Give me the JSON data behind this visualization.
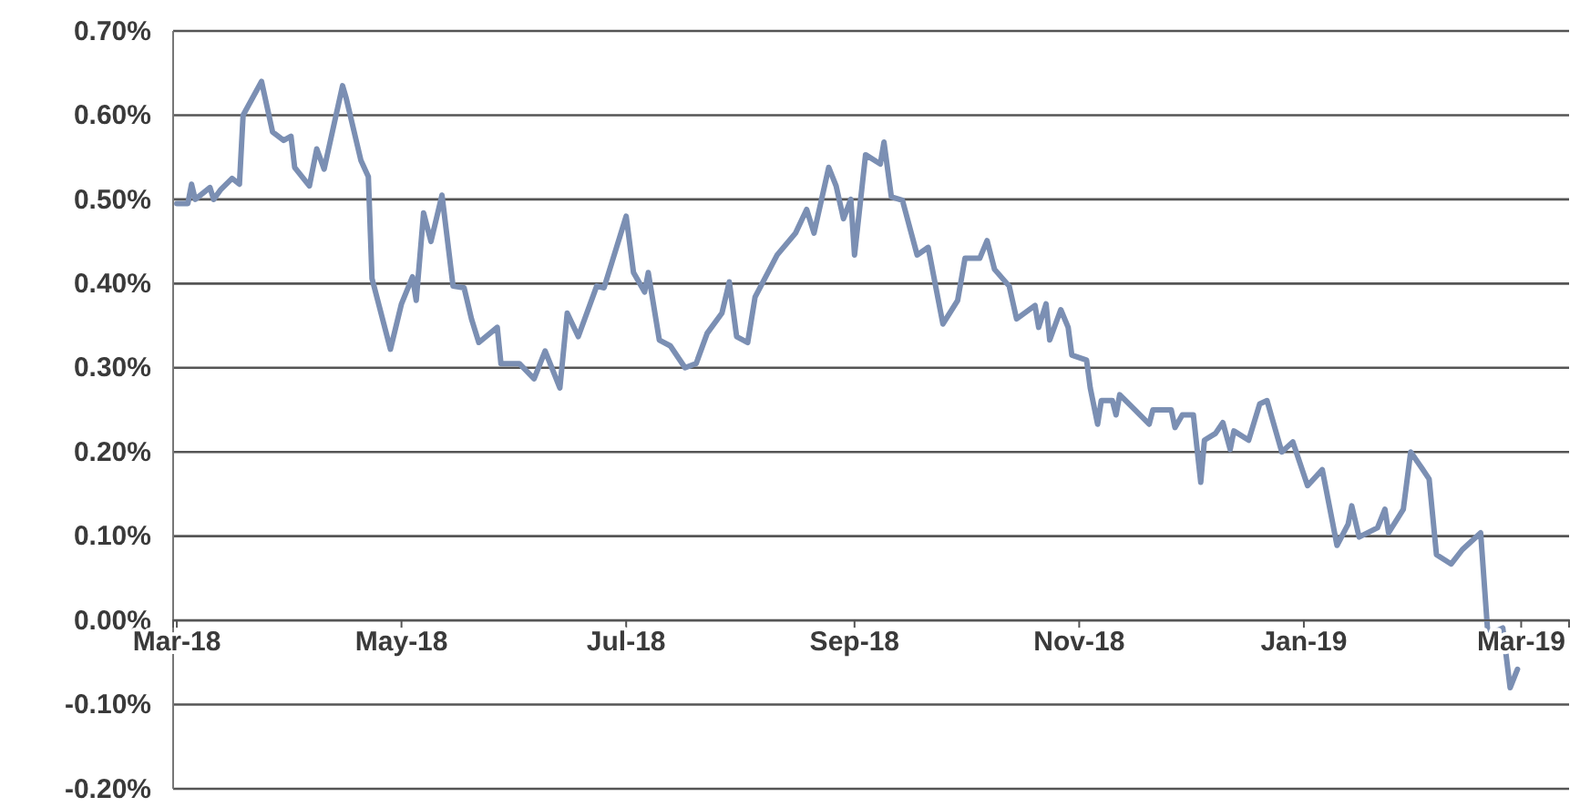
{
  "chart_data": {
    "type": "line",
    "x": [
      "2018-03-01",
      "2018-03-04",
      "2018-03-05",
      "2018-03-06",
      "2018-03-10",
      "2018-03-11",
      "2018-03-13",
      "2018-03-16",
      "2018-03-18",
      "2018-03-19",
      "2018-03-24",
      "2018-03-27",
      "2018-03-30",
      "2018-04-01",
      "2018-04-02",
      "2018-04-06",
      "2018-04-08",
      "2018-04-10",
      "2018-04-15",
      "2018-04-16",
      "2018-04-20",
      "2018-04-22",
      "2018-04-23",
      "2018-04-28",
      "2018-05-01",
      "2018-05-04",
      "2018-05-05",
      "2018-05-07",
      "2018-05-09",
      "2018-05-12",
      "2018-05-15",
      "2018-05-18",
      "2018-05-20",
      "2018-05-22",
      "2018-05-27",
      "2018-05-28",
      "2018-06-02",
      "2018-06-06",
      "2018-06-09",
      "2018-06-13",
      "2018-06-15",
      "2018-06-18",
      "2018-06-23",
      "2018-06-25",
      "2018-07-01",
      "2018-07-03",
      "2018-07-06",
      "2018-07-07",
      "2018-07-10",
      "2018-07-13",
      "2018-07-17",
      "2018-07-20",
      "2018-07-23",
      "2018-07-27",
      "2018-07-29",
      "2018-07-31",
      "2018-08-03",
      "2018-08-05",
      "2018-08-11",
      "2018-08-16",
      "2018-08-19",
      "2018-08-21",
      "2018-08-25",
      "2018-08-27",
      "2018-08-29",
      "2018-08-31",
      "2018-09-01",
      "2018-09-04",
      "2018-09-08",
      "2018-09-09",
      "2018-09-11",
      "2018-09-14",
      "2018-09-18",
      "2018-09-21",
      "2018-09-25",
      "2018-09-29",
      "2018-10-01",
      "2018-10-05",
      "2018-10-07",
      "2018-10-09",
      "2018-10-13",
      "2018-10-15",
      "2018-10-20",
      "2018-10-21",
      "2018-10-23",
      "2018-10-24",
      "2018-10-27",
      "2018-10-29",
      "2018-10-30",
      "2018-11-03",
      "2018-11-04",
      "2018-11-06",
      "2018-11-07",
      "2018-11-10",
      "2018-11-11",
      "2018-11-12",
      "2018-11-15",
      "2018-11-20",
      "2018-11-21",
      "2018-11-26",
      "2018-11-27",
      "2018-11-29",
      "2018-12-02",
      "2018-12-04",
      "2018-12-05",
      "2018-12-08",
      "2018-12-10",
      "2018-12-12",
      "2018-12-13",
      "2018-12-17",
      "2018-12-20",
      "2018-12-22",
      "2018-12-26",
      "2018-12-29",
      "2019-01-02",
      "2019-01-06",
      "2019-01-10",
      "2019-01-13",
      "2019-01-14",
      "2019-01-16",
      "2019-01-21",
      "2019-01-23",
      "2019-01-24",
      "2019-01-28",
      "2019-01-30",
      "2019-02-02",
      "2019-02-04",
      "2019-02-06",
      "2019-02-10",
      "2019-02-13",
      "2019-02-18",
      "2019-02-20",
      "2019-02-22",
      "2019-02-24",
      "2019-02-26",
      "2019-02-28"
    ],
    "series": [
      {
        "color": "#7b8fb3",
        "values": [
          0.495,
          0.495,
          0.518,
          0.5,
          0.514,
          0.5,
          0.512,
          0.525,
          0.518,
          0.6,
          0.64,
          0.58,
          0.57,
          0.575,
          0.538,
          0.516,
          0.56,
          0.536,
          0.635,
          0.62,
          0.546,
          0.527,
          0.406,
          0.322,
          0.376,
          0.408,
          0.38,
          0.484,
          0.45,
          0.505,
          0.397,
          0.395,
          0.358,
          0.33,
          0.348,
          0.305,
          0.305,
          0.287,
          0.32,
          0.276,
          0.365,
          0.337,
          0.397,
          0.395,
          0.48,
          0.413,
          0.39,
          0.413,
          0.333,
          0.326,
          0.3,
          0.305,
          0.341,
          0.365,
          0.402,
          0.337,
          0.33,
          0.384,
          0.434,
          0.46,
          0.488,
          0.46,
          0.538,
          0.516,
          0.477,
          0.5,
          0.434,
          0.553,
          0.542,
          0.568,
          0.503,
          0.499,
          0.434,
          0.443,
          0.352,
          0.38,
          0.43,
          0.43,
          0.451,
          0.417,
          0.397,
          0.358,
          0.374,
          0.348,
          0.376,
          0.333,
          0.369,
          0.348,
          0.315,
          0.309,
          0.276,
          0.233,
          0.261,
          0.261,
          0.244,
          0.268,
          0.255,
          0.233,
          0.25,
          0.25,
          0.229,
          0.244,
          0.244,
          0.164,
          0.214,
          0.222,
          0.235,
          0.203,
          0.225,
          0.214,
          0.257,
          0.261,
          0.2,
          0.212,
          0.16,
          0.179,
          0.089,
          0.114,
          0.136,
          0.099,
          0.11,
          0.132,
          0.104,
          0.132,
          0.2,
          0.181,
          0.168,
          0.078,
          0.067,
          0.084,
          0.104,
          -0.019,
          -0.013,
          -0.009,
          -0.08,
          -0.058
        ]
      }
    ],
    "xlim": [
      "2018-02-28",
      "2019-03-14"
    ],
    "xticks": [
      {
        "value": "2018-03-01",
        "label": "Mar-18"
      },
      {
        "value": "2018-05-01",
        "label": "May-18"
      },
      {
        "value": "2018-07-01",
        "label": "Jul-18"
      },
      {
        "value": "2018-09-01",
        "label": "Sep-18"
      },
      {
        "value": "2018-11-01",
        "label": "Nov-18"
      },
      {
        "value": "2019-01-01",
        "label": "Jan-19"
      },
      {
        "value": "2019-03-01",
        "label": "Mar-19"
      }
    ],
    "ylim": [
      -0.2,
      0.7
    ],
    "yticks": [
      {
        "value": -0.2,
        "label": "-0.20%"
      },
      {
        "value": -0.1,
        "label": "-0.10%"
      },
      {
        "value": 0,
        "label": "0.00%"
      },
      {
        "value": 0.1,
        "label": "0.10%"
      },
      {
        "value": 0.2,
        "label": "0.20%"
      },
      {
        "value": 0.3,
        "label": "0.30%"
      },
      {
        "value": 0.4,
        "label": "0.40%"
      },
      {
        "value": 0.5,
        "label": "0.50%"
      },
      {
        "value": 0.6,
        "label": "0.60%"
      },
      {
        "value": 0.7,
        "label": "0.70%"
      }
    ],
    "grid": "y",
    "legend": false,
    "marker": "none",
    "line_style": "solid"
  }
}
